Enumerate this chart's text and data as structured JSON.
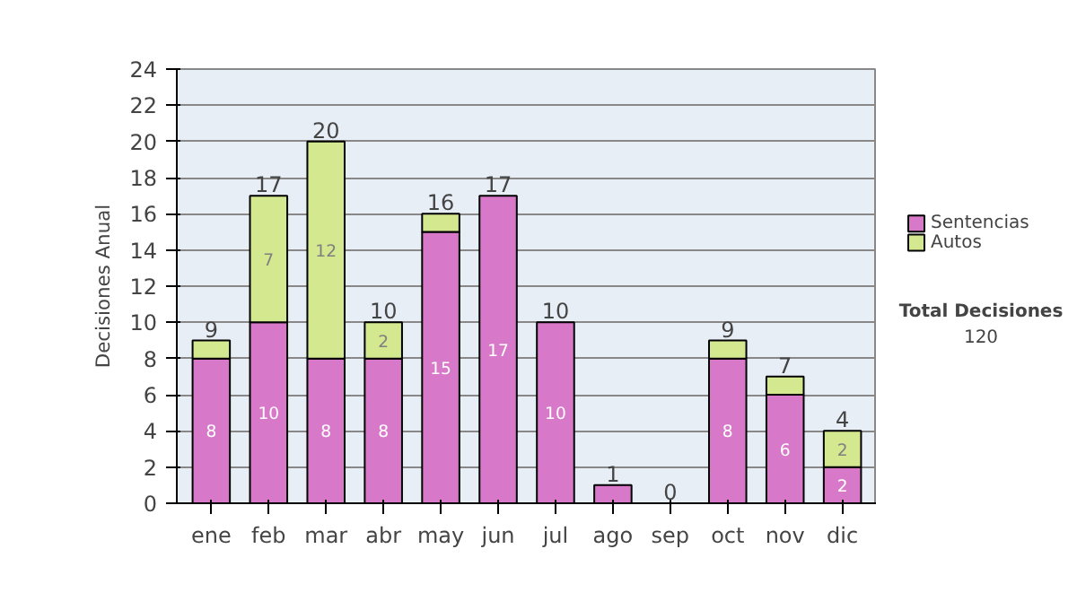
{
  "chart_data": {
    "type": "bar",
    "stacked": true,
    "ylabel": "Decisiones Anual",
    "categories": [
      "ene",
      "feb",
      "mar",
      "abr",
      "may",
      "jun",
      "jul",
      "ago",
      "sep",
      "oct",
      "nov",
      "dic"
    ],
    "series": [
      {
        "name": "Sentencias",
        "color": "#d878c8",
        "values": [
          8,
          10,
          8,
          8,
          15,
          17,
          10,
          1,
          0,
          8,
          6,
          2
        ],
        "value_labels": [
          "8",
          "10",
          "8",
          "8",
          "15",
          "17",
          "10",
          null,
          null,
          "8",
          "6",
          "2"
        ]
      },
      {
        "name": "Autos",
        "color": "#d4e890",
        "values": [
          1,
          7,
          12,
          2,
          1,
          0,
          0,
          0,
          0,
          1,
          1,
          2
        ],
        "value_labels": [
          null,
          "7",
          "12",
          "2",
          null,
          null,
          null,
          null,
          null,
          null,
          null,
          "2"
        ]
      }
    ],
    "totals": [
      "9",
      "17",
      "20",
      "10",
      "16",
      "17",
      "10",
      "1",
      "0",
      "9",
      "7",
      "4"
    ],
    "ylim": [
      0,
      24
    ],
    "yticks": [
      0,
      2,
      4,
      6,
      8,
      10,
      12,
      14,
      16,
      18,
      20,
      22,
      24
    ],
    "grid": "y",
    "legend": "right",
    "annotations": [
      "Total Decisiones",
      "120"
    ]
  }
}
